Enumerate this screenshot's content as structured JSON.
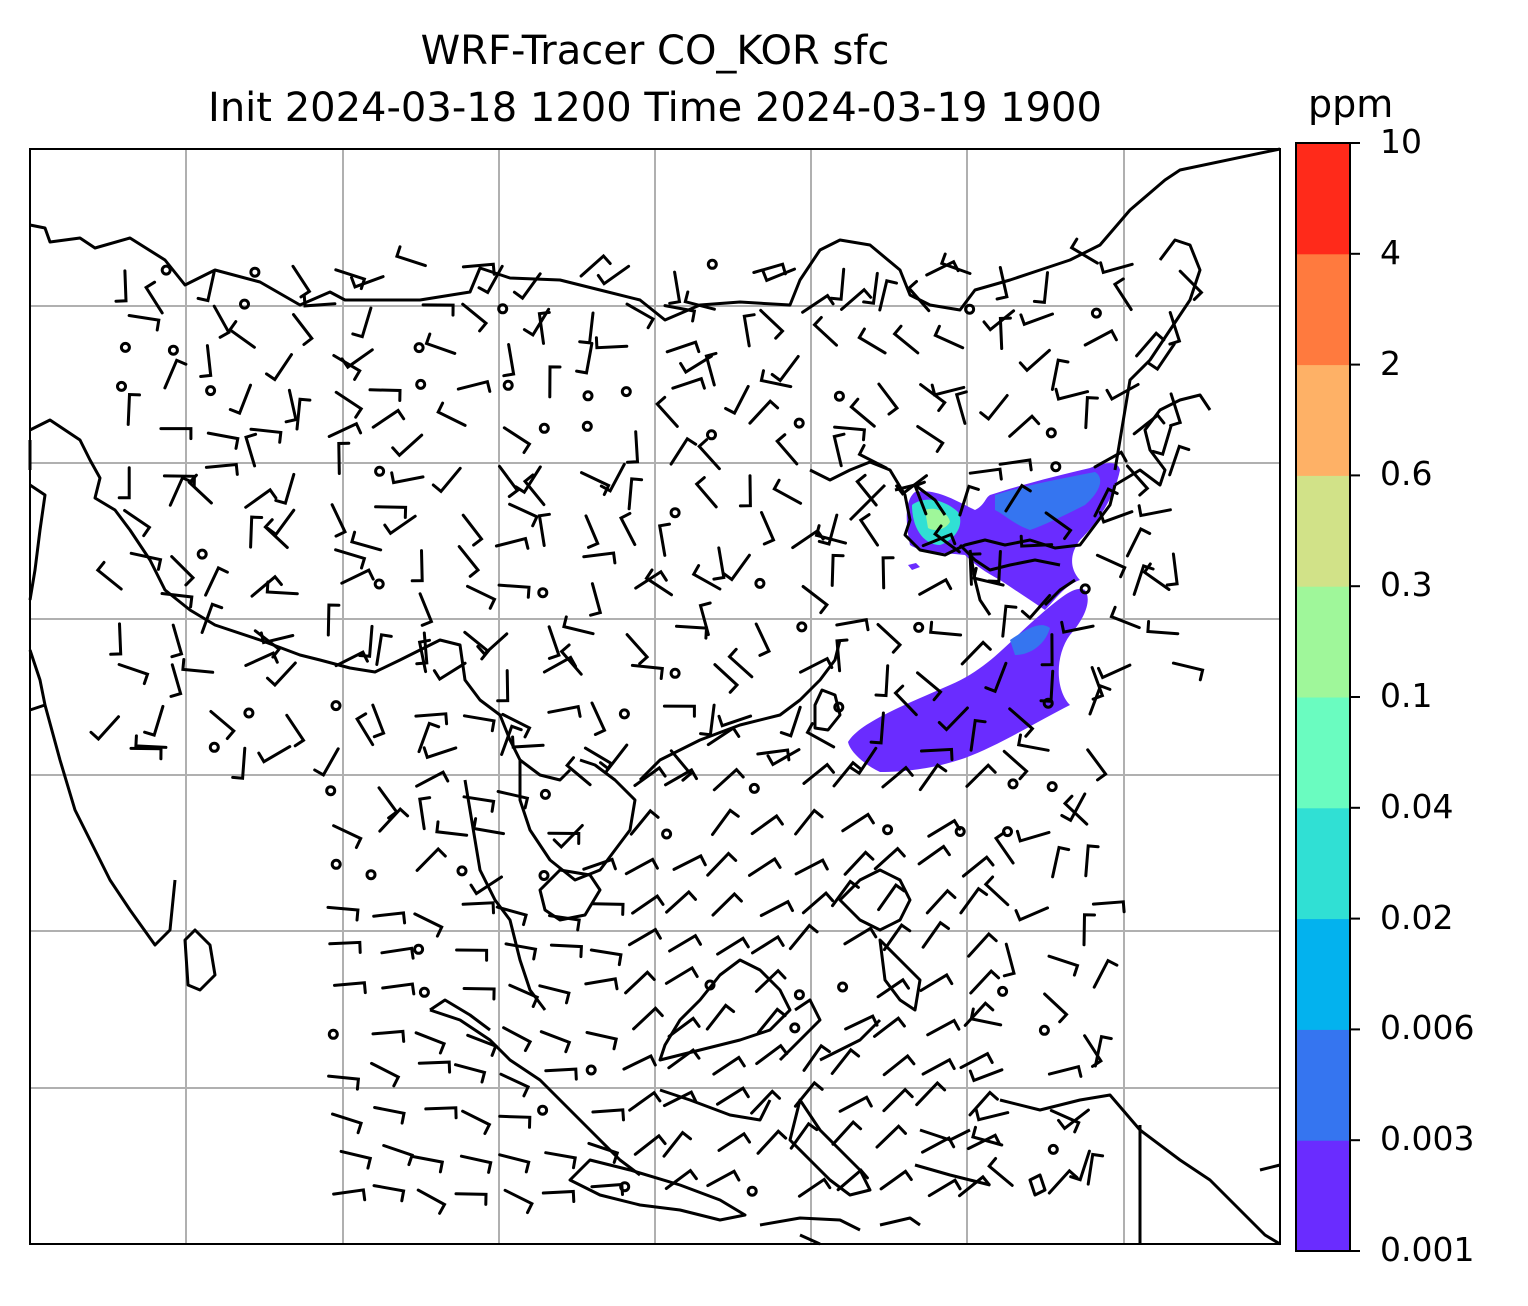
{
  "title": {
    "line1": "WRF-Tracer CO_KOR sfc",
    "line2": "Init 2024-03-18 1200 Time 2024-03-19 1900"
  },
  "colorbar": {
    "unit": "ppm",
    "ticks": [
      "10",
      "4",
      "2",
      "0.6",
      "0.3",
      "0.1",
      "0.04",
      "0.02",
      "0.006",
      "0.003",
      "0.001"
    ],
    "colors": [
      "#6a2cff",
      "#3575f0",
      "#03b2ee",
      "#30e0d4",
      "#6afcc0",
      "#9ff79a",
      "#d1e288",
      "#feb166",
      "#ff7a3e",
      "#ff2a1a"
    ]
  },
  "map": {
    "background": "#ffffff",
    "gridlines": true,
    "grid_color": "#b0b0b0",
    "coastline_color": "#000000",
    "plume_color_levels": [
      "0.001",
      "0.003",
      "0.006",
      "0.02",
      "0.04"
    ]
  }
}
